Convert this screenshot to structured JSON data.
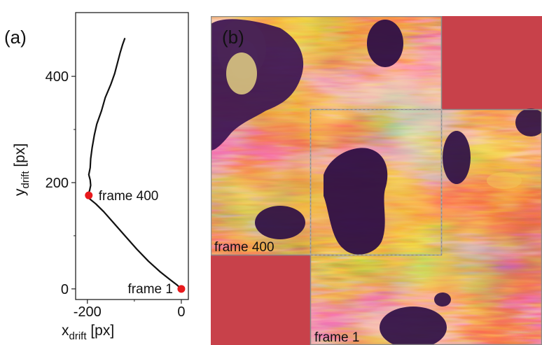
{
  "panel_a_label": "(a)",
  "panel_b_label": "(b)",
  "chart_data": {
    "type": "line",
    "xlabel": "x",
    "xlabel_sub": "drift",
    "xlabel_unit": " [px]",
    "ylabel": "y",
    "ylabel_sub": "drift",
    "ylabel_unit": " [px]",
    "xlim": [
      -225,
      15
    ],
    "ylim": [
      -20,
      520
    ],
    "xticks": [
      -200,
      0
    ],
    "xticks_minor": [
      -100
    ],
    "yticks": [
      0,
      200,
      400
    ],
    "yticks_minor": [
      100,
      300
    ],
    "series": [
      {
        "color": "#111111",
        "points": [
          [
            0,
            0
          ],
          [
            -10,
            8
          ],
          [
            -25,
            18
          ],
          [
            -45,
            32
          ],
          [
            -70,
            52
          ],
          [
            -95,
            75
          ],
          [
            -120,
            100
          ],
          [
            -145,
            125
          ],
          [
            -165,
            145
          ],
          [
            -182,
            160
          ],
          [
            -196,
            170
          ],
          [
            -200,
            172
          ],
          [
            -198,
            178
          ],
          [
            -195,
            186
          ],
          [
            -193,
            195
          ],
          [
            -194,
            205
          ],
          [
            -197,
            215
          ],
          [
            -194,
            228
          ],
          [
            -193,
            245
          ],
          [
            -190,
            265
          ],
          [
            -185,
            290
          ],
          [
            -180,
            310
          ],
          [
            -170,
            335
          ],
          [
            -162,
            360
          ],
          [
            -150,
            385
          ],
          [
            -142,
            405
          ],
          [
            -136,
            425
          ],
          [
            -130,
            445
          ],
          [
            -125,
            460
          ],
          [
            -120,
            472
          ]
        ]
      }
    ],
    "markers": [
      {
        "x": 0,
        "y": 0,
        "label": "frame 1",
        "color": "#e8191c"
      },
      {
        "x": -197,
        "y": 176,
        "label": "frame 400",
        "color": "#e8191c"
      }
    ]
  },
  "image_panel": {
    "frame_400_label": "frame 400",
    "frame_1_label": "frame 1",
    "fill_color": "#c8414a",
    "frame_border_color": "#8a8a8a",
    "overlap_border_color": "#a8a8a8"
  }
}
